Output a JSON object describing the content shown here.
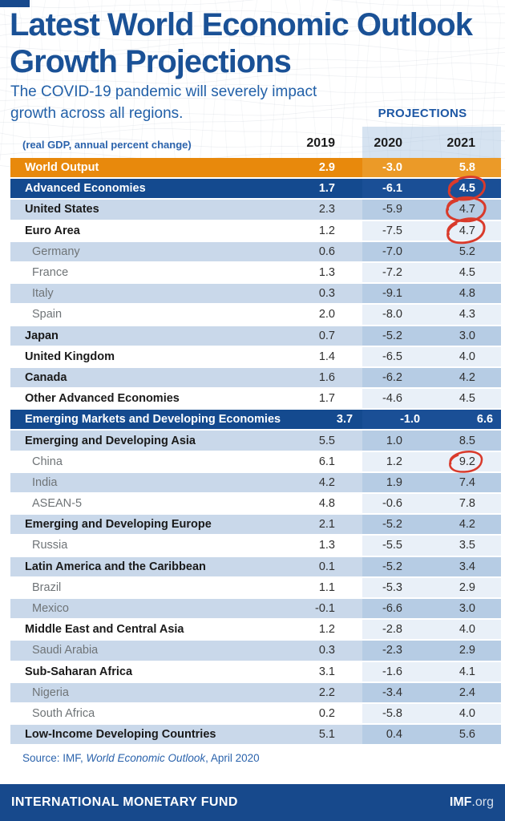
{
  "header": {
    "title_line1": "Latest World Economic Outlook",
    "title_line2": "Growth Projections",
    "subtitle_line1": "The COVID-19 pandemic will severely impact",
    "subtitle_line2": "growth across all regions.",
    "unit_note": "(real GDP, annual percent change)",
    "projections_label": "PROJECTIONS"
  },
  "source": {
    "prefix": "Source: IMF, ",
    "italic": "World Economic Outlook",
    "suffix": ", April 2020"
  },
  "footer": {
    "org": "INTERNATIONAL MONETARY FUND",
    "site_bold": "IMF",
    "site_rest": ".org"
  },
  "colors": {
    "title_blue": "#1a5196",
    "dark_blue_row": "#144a8f",
    "orange_row": "#e8890c",
    "light_blue_row": "#c9d8ea",
    "projection_tint": "#b6cce4",
    "annotation_red": "#d93a2b",
    "footer_blue": "#17498c"
  },
  "chart_data": {
    "type": "table",
    "title": "Latest World Economic Outlook Growth Projections",
    "unit": "real GDP, annual percent change",
    "columns": [
      "2019",
      "2020",
      "2021"
    ],
    "projection_columns": [
      "2020",
      "2021"
    ],
    "rows": [
      {
        "label": "World Output",
        "type": "world",
        "values": [
          2.9,
          -3.0,
          5.8
        ],
        "circled": []
      },
      {
        "label": "Advanced Economies",
        "type": "group",
        "values": [
          1.7,
          -6.1,
          4.5
        ],
        "circled": [
          "2021"
        ]
      },
      {
        "label": "United States",
        "type": "main",
        "values": [
          2.3,
          -5.9,
          4.7
        ],
        "circled": [
          "2021"
        ]
      },
      {
        "label": "Euro Area",
        "type": "main",
        "values": [
          1.2,
          -7.5,
          4.7
        ],
        "circled": [
          "2021"
        ]
      },
      {
        "label": "Germany",
        "type": "sub",
        "values": [
          0.6,
          -7.0,
          5.2
        ],
        "circled": []
      },
      {
        "label": "France",
        "type": "sub",
        "values": [
          1.3,
          -7.2,
          4.5
        ],
        "circled": []
      },
      {
        "label": "Italy",
        "type": "sub",
        "values": [
          0.3,
          -9.1,
          4.8
        ],
        "circled": []
      },
      {
        "label": "Spain",
        "type": "sub",
        "values": [
          2.0,
          -8.0,
          4.3
        ],
        "circled": []
      },
      {
        "label": "Japan",
        "type": "main",
        "values": [
          0.7,
          -5.2,
          3.0
        ],
        "circled": []
      },
      {
        "label": "United Kingdom",
        "type": "main",
        "values": [
          1.4,
          -6.5,
          4.0
        ],
        "circled": []
      },
      {
        "label": "Canada",
        "type": "main",
        "values": [
          1.6,
          -6.2,
          4.2
        ],
        "circled": []
      },
      {
        "label": "Other Advanced Economies",
        "type": "main",
        "values": [
          1.7,
          -4.6,
          4.5
        ],
        "circled": []
      },
      {
        "label": "Emerging Markets and Developing Economies",
        "type": "group",
        "values": [
          3.7,
          -1.0,
          6.6
        ],
        "circled": []
      },
      {
        "label": "Emerging and Developing Asia",
        "type": "main",
        "values": [
          5.5,
          1.0,
          8.5
        ],
        "circled": []
      },
      {
        "label": "China",
        "type": "sub",
        "values": [
          6.1,
          1.2,
          9.2
        ],
        "circled": [
          "2021"
        ]
      },
      {
        "label": "India",
        "type": "sub",
        "values": [
          4.2,
          1.9,
          7.4
        ],
        "circled": []
      },
      {
        "label": "ASEAN-5",
        "type": "sub",
        "values": [
          4.8,
          -0.6,
          7.8
        ],
        "circled": []
      },
      {
        "label": "Emerging and Developing Europe",
        "type": "main",
        "values": [
          2.1,
          -5.2,
          4.2
        ],
        "circled": []
      },
      {
        "label": "Russia",
        "type": "sub",
        "values": [
          1.3,
          -5.5,
          3.5
        ],
        "circled": []
      },
      {
        "label": "Latin America and the Caribbean",
        "type": "main",
        "values": [
          0.1,
          -5.2,
          3.4
        ],
        "circled": []
      },
      {
        "label": "Brazil",
        "type": "sub",
        "values": [
          1.1,
          -5.3,
          2.9
        ],
        "circled": []
      },
      {
        "label": "Mexico",
        "type": "sub",
        "values": [
          -0.1,
          -6.6,
          3.0
        ],
        "circled": []
      },
      {
        "label": "Middle East and Central Asia",
        "type": "main",
        "values": [
          1.2,
          -2.8,
          4.0
        ],
        "circled": []
      },
      {
        "label": "Saudi Arabia",
        "type": "sub",
        "values": [
          0.3,
          -2.3,
          2.9
        ],
        "circled": []
      },
      {
        "label": "Sub-Saharan Africa",
        "type": "main",
        "values": [
          3.1,
          -1.6,
          4.1
        ],
        "circled": []
      },
      {
        "label": "Nigeria",
        "type": "sub",
        "values": [
          2.2,
          -3.4,
          2.4
        ],
        "circled": []
      },
      {
        "label": "South Africa",
        "type": "sub",
        "values": [
          0.2,
          -5.8,
          4.0
        ],
        "circled": []
      },
      {
        "label": "Low-Income Developing Countries",
        "type": "main",
        "values": [
          5.1,
          0.4,
          5.6
        ],
        "circled": []
      }
    ]
  }
}
